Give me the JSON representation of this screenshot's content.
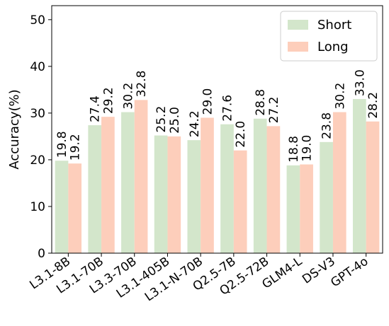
{
  "chart_data": {
    "type": "bar",
    "title": "",
    "xlabel": "",
    "ylabel": "Accuracy(%)",
    "ylim": [
      0,
      53
    ],
    "yticks": [
      0,
      10,
      20,
      30,
      40,
      50
    ],
    "grid": false,
    "legend_position": "top-right",
    "categories": [
      "L3.1-8B",
      "L3.1-70B",
      "L3.3-70B",
      "L3.1-405B",
      "L3.1-N-70B",
      "Q2.5-7B",
      "Q2.5-72B",
      "GLM4-L",
      "DS-V3",
      "GPT-4o"
    ],
    "series": [
      {
        "name": "Short",
        "color": "#d3e6cb",
        "values": [
          19.8,
          27.4,
          30.2,
          25.2,
          24.2,
          27.6,
          28.8,
          18.8,
          23.8,
          33.0
        ],
        "labels": [
          "19.8",
          "27.4",
          "30.2",
          "25.2",
          "24.2",
          "27.6",
          "28.8",
          "18.8",
          "23.8",
          "33.0"
        ]
      },
      {
        "name": "Long",
        "color": "#fdcebb",
        "values": [
          19.2,
          29.2,
          32.8,
          25.0,
          29.0,
          22.0,
          27.2,
          19.0,
          30.2,
          28.2
        ],
        "labels": [
          "19.2",
          "29.2",
          "32.8",
          "25.0",
          "29.0",
          "22.0",
          "27.2",
          "19.0",
          "30.2",
          "28.2"
        ]
      }
    ]
  }
}
